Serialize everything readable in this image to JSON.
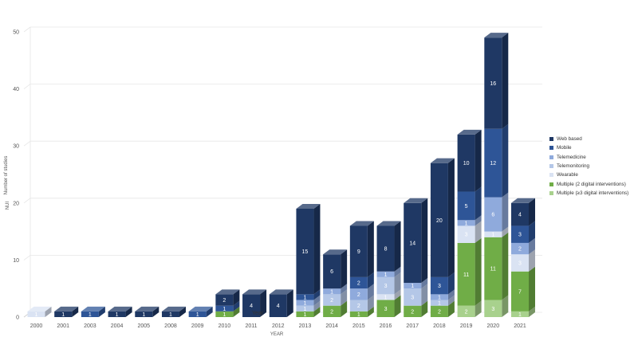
{
  "chart_data": {
    "type": "bar",
    "stacked": true,
    "categories": [
      "2000",
      "2001",
      "2003",
      "2004",
      "2005",
      "2008",
      "2009",
      "2010",
      "2011",
      "2012",
      "2013",
      "2014",
      "2015",
      "2016",
      "2017",
      "2018",
      "2019",
      "2020",
      "2021"
    ],
    "series": [
      {
        "name": "Multiple (≥3 digital interventions)",
        "color": "#a8d18d",
        "values": [
          0,
          0,
          0,
          0,
          0,
          0,
          0,
          0,
          0,
          0,
          0,
          0,
          0,
          0,
          0,
          0,
          2,
          3,
          1
        ]
      },
      {
        "name": "Multiple (2 digital interventions)",
        "color": "#70ad47",
        "values": [
          0,
          0,
          0,
          0,
          0,
          0,
          0,
          1,
          0,
          0,
          1,
          2,
          1,
          3,
          2,
          2,
          11,
          11,
          7
        ]
      },
      {
        "name": "Wearable",
        "color": "#dae3f3",
        "values": [
          1,
          0,
          0,
          0,
          0,
          0,
          0,
          0,
          0,
          0,
          0,
          0,
          0,
          1,
          0,
          0,
          3,
          1,
          3
        ]
      },
      {
        "name": "Telemonitoring",
        "color": "#b4c7e7",
        "values": [
          0,
          0,
          0,
          0,
          0,
          0,
          0,
          0,
          0,
          0,
          1,
          2,
          2,
          3,
          3,
          1,
          0,
          0,
          0
        ]
      },
      {
        "name": "Telemedicine",
        "color": "#8faadc",
        "values": [
          0,
          0,
          0,
          0,
          0,
          0,
          0,
          0,
          0,
          0,
          1,
          1,
          2,
          1,
          1,
          1,
          1,
          6,
          2
        ]
      },
      {
        "name": "Mobile",
        "color": "#2e5597",
        "values": [
          0,
          0,
          1,
          0,
          0,
          0,
          1,
          1,
          0,
          0,
          1,
          0,
          2,
          0,
          0,
          3,
          5,
          12,
          3
        ]
      },
      {
        "name": "Web based",
        "color": "#1f3864",
        "values": [
          0,
          1,
          0,
          1,
          1,
          1,
          0,
          2,
          4,
          4,
          15,
          6,
          9,
          8,
          14,
          20,
          10,
          16,
          4
        ]
      }
    ],
    "value_labels": [
      [
        null,
        null,
        null,
        null,
        null,
        null,
        null,
        null,
        null,
        null,
        null,
        null,
        null,
        null,
        null,
        null,
        "2",
        "3",
        "1"
      ],
      [
        null,
        null,
        null,
        null,
        null,
        null,
        null,
        "1",
        null,
        null,
        "1",
        "2",
        "1",
        "3",
        "2",
        "2",
        "11",
        "11",
        "7"
      ],
      [
        "1",
        null,
        null,
        null,
        null,
        null,
        null,
        null,
        null,
        null,
        null,
        null,
        null,
        "1",
        null,
        null,
        "3",
        "1",
        "3"
      ],
      [
        null,
        null,
        null,
        null,
        null,
        null,
        null,
        null,
        null,
        null,
        "1",
        "2",
        "2",
        "3",
        "3",
        "1",
        null,
        null,
        null
      ],
      [
        null,
        null,
        null,
        null,
        null,
        null,
        null,
        null,
        null,
        null,
        "1",
        "1",
        "2",
        "1",
        "1",
        "1",
        "1",
        "6",
        "2"
      ],
      [
        null,
        null,
        "1",
        null,
        null,
        null,
        "1",
        "1",
        null,
        null,
        "1",
        null,
        "2",
        null,
        null,
        "3",
        "5",
        "12",
        "3"
      ],
      [
        null,
        "1",
        null,
        "1",
        "1",
        "1",
        null,
        "2",
        "4",
        "4",
        "15",
        "6",
        "9",
        "8",
        "14",
        "20",
        "10",
        "16",
        "4"
      ]
    ],
    "yticks": [
      0,
      10,
      20,
      30,
      40,
      50
    ],
    "ylim": [
      0,
      50
    ],
    "ylabel": "Number of studies",
    "ylabel_secondary": "NUI",
    "xlabel": "YEAR",
    "annotation": {
      "category": "2011",
      "text": "Year"
    },
    "grid": true,
    "legend_position": "right"
  },
  "legend_order": [
    6,
    5,
    4,
    3,
    2,
    1,
    0
  ]
}
